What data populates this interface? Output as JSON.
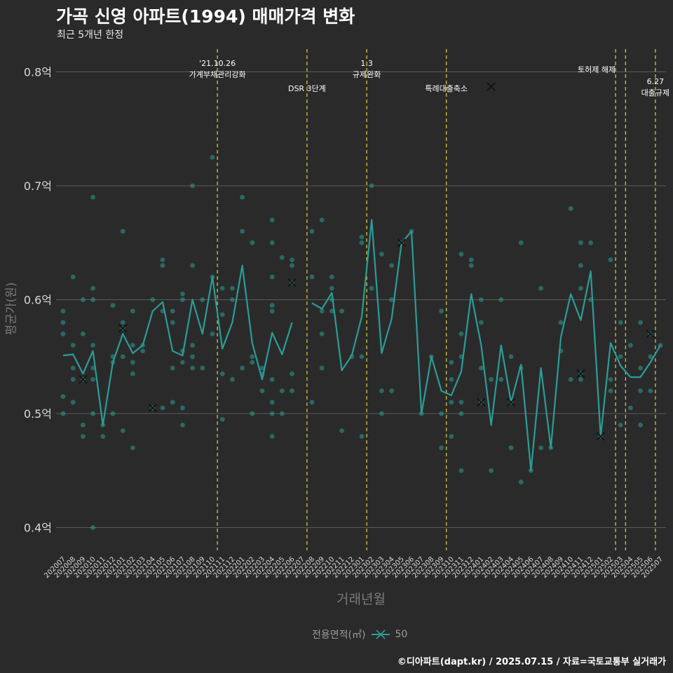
{
  "title": "가곡 신영 아파트(1994) 매매가격 변화",
  "subtitle": "최근 5개년 한정",
  "caption": "©디아파트(dapt.kr) / 2025.07.15 / 자료=국토교통부 실거래가",
  "colors": {
    "background": "#2b2a2b",
    "series": "#2a9d96",
    "event_line": "#e8e53a",
    "grid": "#5b5b5b"
  },
  "chart_data": {
    "type": "line",
    "xlabel": "거래년월",
    "ylabel": "평균가(원)",
    "ylim": [
      0.38,
      0.82
    ],
    "yticks": [
      0.4,
      0.5,
      0.6,
      0.7,
      0.8
    ],
    "ytick_labels": [
      "0.4억",
      "0.5억",
      "0.6억",
      "0.7억",
      "0.8억"
    ],
    "categories": [
      "202007",
      "202008",
      "202009",
      "202010",
      "202011",
      "202012",
      "202101",
      "202102",
      "202103",
      "202104",
      "202105",
      "202106",
      "202107",
      "202108",
      "202109",
      "202110",
      "202111",
      "202112",
      "202201",
      "202202",
      "202203",
      "202204",
      "202205",
      "202206",
      "202207",
      "202208",
      "202209",
      "202210",
      "202211",
      "202212",
      "202301",
      "202302",
      "202303",
      "202304",
      "202305",
      "202306",
      "202307",
      "202308",
      "202309",
      "202310",
      "202311",
      "202312",
      "202401",
      "202402",
      "202403",
      "202404",
      "202405",
      "202406",
      "202407",
      "202408",
      "202409",
      "202410",
      "202411",
      "202412",
      "202501",
      "202502",
      "202503",
      "202504",
      "202505",
      "202506",
      "202507"
    ],
    "legend_title": "전용면적(㎡)",
    "series": [
      {
        "name": "50",
        "values": [
          0.551,
          0.552,
          0.535,
          0.555,
          0.49,
          0.545,
          0.57,
          0.553,
          0.56,
          0.59,
          0.598,
          0.555,
          0.551,
          0.6,
          0.57,
          0.62,
          0.557,
          0.58,
          0.63,
          0.562,
          0.53,
          0.571,
          0.552,
          0.58,
          null,
          0.597,
          0.592,
          0.606,
          0.538,
          0.551,
          0.585,
          0.67,
          0.553,
          0.583,
          0.65,
          0.66,
          0.5,
          0.55,
          0.52,
          0.516,
          0.537,
          0.605,
          0.56,
          0.49,
          0.56,
          0.51,
          0.543,
          0.45,
          0.54,
          0.47,
          0.567,
          0.605,
          0.582,
          0.625,
          0.48,
          0.562,
          0.542,
          0.532,
          0.532,
          0.545,
          0.56
        ]
      }
    ],
    "scatter_points": [
      [
        0,
        0.59
      ],
      [
        0,
        0.58
      ],
      [
        0,
        0.57
      ],
      [
        0,
        0.515
      ],
      [
        0,
        0.5
      ],
      [
        1,
        0.62
      ],
      [
        1,
        0.56
      ],
      [
        1,
        0.54
      ],
      [
        1,
        0.53
      ],
      [
        1,
        0.51
      ],
      [
        2,
        0.6
      ],
      [
        2,
        0.57
      ],
      [
        2,
        0.53
      ],
      [
        2,
        0.49
      ],
      [
        2,
        0.48
      ],
      [
        3,
        0.69
      ],
      [
        3,
        0.61
      ],
      [
        3,
        0.6
      ],
      [
        3,
        0.56
      ],
      [
        3,
        0.54
      ],
      [
        3,
        0.53
      ],
      [
        3,
        0.5
      ],
      [
        3,
        0.4
      ],
      [
        4,
        0.49
      ],
      [
        4,
        0.48
      ],
      [
        5,
        0.595
      ],
      [
        5,
        0.55
      ],
      [
        5,
        0.545
      ],
      [
        5,
        0.5
      ],
      [
        6,
        0.66
      ],
      [
        6,
        0.58
      ],
      [
        6,
        0.575
      ],
      [
        6,
        0.55
      ],
      [
        6,
        0.485
      ],
      [
        7,
        0.59
      ],
      [
        7,
        0.56
      ],
      [
        7,
        0.545
      ],
      [
        7,
        0.535
      ],
      [
        7,
        0.47
      ],
      [
        8,
        0.56
      ],
      [
        8,
        0.555
      ],
      [
        9,
        0.6
      ],
      [
        9,
        0.505
      ],
      [
        10,
        0.635
      ],
      [
        10,
        0.63
      ],
      [
        10,
        0.59
      ],
      [
        10,
        0.505
      ],
      [
        11,
        0.59
      ],
      [
        11,
        0.58
      ],
      [
        11,
        0.54
      ],
      [
        11,
        0.51
      ],
      [
        12,
        0.605
      ],
      [
        12,
        0.6
      ],
      [
        12,
        0.555
      ],
      [
        12,
        0.545
      ],
      [
        12,
        0.505
      ],
      [
        12,
        0.49
      ],
      [
        13,
        0.7
      ],
      [
        13,
        0.63
      ],
      [
        13,
        0.56
      ],
      [
        13,
        0.55
      ],
      [
        13,
        0.54
      ],
      [
        14,
        0.6
      ],
      [
        14,
        0.54
      ],
      [
        15,
        0.725
      ],
      [
        15,
        0.62
      ],
      [
        15,
        0.57
      ],
      [
        16,
        0.61
      ],
      [
        16,
        0.587
      ],
      [
        16,
        0.535
      ],
      [
        16,
        0.495
      ],
      [
        17,
        0.61
      ],
      [
        17,
        0.6
      ],
      [
        17,
        0.53
      ],
      [
        18,
        0.69
      ],
      [
        18,
        0.66
      ],
      [
        18,
        0.54
      ],
      [
        19,
        0.65
      ],
      [
        19,
        0.55
      ],
      [
        19,
        0.545
      ],
      [
        19,
        0.5
      ],
      [
        20,
        0.54
      ],
      [
        20,
        0.535
      ],
      [
        20,
        0.52
      ],
      [
        21,
        0.67
      ],
      [
        21,
        0.65
      ],
      [
        21,
        0.62
      ],
      [
        21,
        0.595
      ],
      [
        21,
        0.59
      ],
      [
        21,
        0.53
      ],
      [
        21,
        0.51
      ],
      [
        21,
        0.5
      ],
      [
        21,
        0.48
      ],
      [
        22,
        0.637
      ],
      [
        22,
        0.52
      ],
      [
        22,
        0.5
      ],
      [
        23,
        0.635
      ],
      [
        23,
        0.63
      ],
      [
        23,
        0.615
      ],
      [
        23,
        0.535
      ],
      [
        23,
        0.52
      ],
      [
        25,
        0.66
      ],
      [
        25,
        0.62
      ],
      [
        25,
        0.51
      ],
      [
        26,
        0.67
      ],
      [
        26,
        0.59
      ],
      [
        26,
        0.57
      ],
      [
        26,
        0.54
      ],
      [
        27,
        0.62
      ],
      [
        27,
        0.61
      ],
      [
        27,
        0.6
      ],
      [
        27,
        0.59
      ],
      [
        28,
        0.59
      ],
      [
        28,
        0.485
      ],
      [
        29,
        0.55
      ],
      [
        30,
        0.655
      ],
      [
        30,
        0.65
      ],
      [
        30,
        0.55
      ],
      [
        30,
        0.48
      ],
      [
        31,
        0.7
      ],
      [
        31,
        0.61
      ],
      [
        32,
        0.64
      ],
      [
        32,
        0.52
      ],
      [
        32,
        0.5
      ],
      [
        33,
        0.63
      ],
      [
        33,
        0.6
      ],
      [
        33,
        0.52
      ],
      [
        34,
        0.65
      ],
      [
        35,
        0.66
      ],
      [
        36,
        0.5
      ],
      [
        37,
        0.55
      ],
      [
        38,
        0.59
      ],
      [
        38,
        0.5
      ],
      [
        38,
        0.47
      ],
      [
        39,
        0.545
      ],
      [
        39,
        0.53
      ],
      [
        39,
        0.51
      ],
      [
        39,
        0.48
      ],
      [
        40,
        0.64
      ],
      [
        40,
        0.57
      ],
      [
        40,
        0.55
      ],
      [
        40,
        0.51
      ],
      [
        40,
        0.5
      ],
      [
        40,
        0.45
      ],
      [
        41,
        0.635
      ],
      [
        41,
        0.63
      ],
      [
        42,
        0.6
      ],
      [
        42,
        0.58
      ],
      [
        42,
        0.54
      ],
      [
        42,
        0.51
      ],
      [
        43,
        0.53
      ],
      [
        43,
        0.45
      ],
      [
        44,
        0.6
      ],
      [
        44,
        0.53
      ],
      [
        45,
        0.55
      ],
      [
        45,
        0.51
      ],
      [
        45,
        0.47
      ],
      [
        46,
        0.65
      ],
      [
        46,
        0.54
      ],
      [
        46,
        0.44
      ],
      [
        47,
        0.45
      ],
      [
        48,
        0.61
      ],
      [
        48,
        0.47
      ],
      [
        49,
        0.47
      ],
      [
        50,
        0.58
      ],
      [
        50,
        0.555
      ],
      [
        51,
        0.68
      ],
      [
        51,
        0.53
      ],
      [
        52,
        0.65
      ],
      [
        52,
        0.63
      ],
      [
        52,
        0.61
      ],
      [
        52,
        0.535
      ],
      [
        52,
        0.53
      ],
      [
        53,
        0.65
      ],
      [
        53,
        0.6
      ],
      [
        54,
        0.48
      ],
      [
        55,
        0.635
      ],
      [
        55,
        0.53
      ],
      [
        55,
        0.52
      ],
      [
        56,
        0.58
      ],
      [
        56,
        0.55
      ],
      [
        56,
        0.49
      ],
      [
        57,
        0.56
      ],
      [
        57,
        0.505
      ],
      [
        58,
        0.58
      ],
      [
        58,
        0.54
      ],
      [
        58,
        0.52
      ],
      [
        58,
        0.49
      ],
      [
        59,
        0.57
      ],
      [
        59,
        0.55
      ],
      [
        59,
        0.52
      ],
      [
        60,
        0.56
      ]
    ],
    "x_markers": [
      [
        2,
        0.53
      ],
      [
        6,
        0.575
      ],
      [
        9,
        0.505
      ],
      [
        23,
        0.615
      ],
      [
        34,
        0.65
      ],
      [
        43,
        0.787
      ],
      [
        42,
        0.51
      ],
      [
        45,
        0.51
      ],
      [
        52,
        0.535
      ],
      [
        54,
        0.48
      ],
      [
        59,
        0.57
      ]
    ],
    "events": [
      {
        "index": 15,
        "lines": [
          "'21.10.26",
          "가계부채관리강화"
        ],
        "row": 0
      },
      {
        "index": 24,
        "lines": [
          "DSR 3단계"
        ],
        "row": 2
      },
      {
        "index": 30,
        "lines": [
          "1.3",
          "규제완화"
        ],
        "row": 0
      },
      {
        "index": 38,
        "lines": [
          "특례대출축소"
        ],
        "row": 2
      },
      {
        "index": 55,
        "lines": [
          "토허제 해제"
        ],
        "row": 1,
        "anchor": "end"
      },
      {
        "index": 56,
        "lines": [],
        "row": 1
      },
      {
        "index": 59,
        "lines": [
          "6.27",
          "대출규제"
        ],
        "row": 3
      }
    ]
  }
}
